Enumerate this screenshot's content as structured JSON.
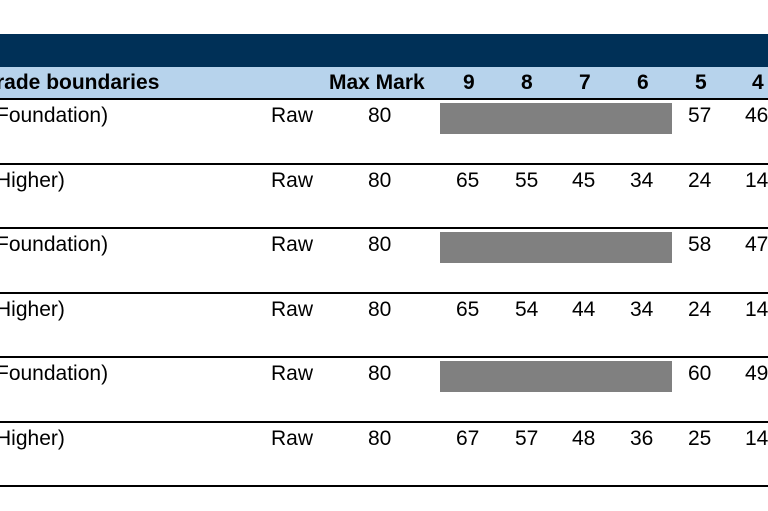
{
  "header": {
    "col_name": "rade boundaries",
    "col_max": "Max Mark",
    "grades": [
      "9",
      "8",
      "7",
      "6",
      "5",
      "4"
    ]
  },
  "rows": [
    {
      "name": "Foundation)",
      "type": "Raw",
      "max": "80",
      "tier": "foundation",
      "g9": "",
      "g8": "",
      "g7": "",
      "g6": "",
      "g5": "57",
      "g4": "46"
    },
    {
      "name": "Higher)",
      "type": "Raw",
      "max": "80",
      "tier": "higher",
      "g9": "65",
      "g8": "55",
      "g7": "45",
      "g6": "34",
      "g5": "24",
      "g4": "14"
    },
    {
      "name": "Foundation)",
      "type": "Raw",
      "max": "80",
      "tier": "foundation",
      "g9": "",
      "g8": "",
      "g7": "",
      "g6": "",
      "g5": "58",
      "g4": "47"
    },
    {
      "name": "Higher)",
      "type": "Raw",
      "max": "80",
      "tier": "higher",
      "g9": "65",
      "g8": "54",
      "g7": "44",
      "g6": "34",
      "g5": "24",
      "g4": "14"
    },
    {
      "name": "Foundation)",
      "type": "Raw",
      "max": "80",
      "tier": "foundation",
      "g9": "",
      "g8": "",
      "g7": "",
      "g6": "",
      "g5": "60",
      "g4": "49"
    },
    {
      "name": "Higher)",
      "type": "Raw",
      "max": "80",
      "tier": "higher",
      "g9": "67",
      "g8": "57",
      "g7": "48",
      "g6": "36",
      "g5": "25",
      "g4": "14"
    }
  ],
  "colors": {
    "title_bar": "#003057",
    "header_bg": "#b7d3ec",
    "shade": "#808080"
  }
}
